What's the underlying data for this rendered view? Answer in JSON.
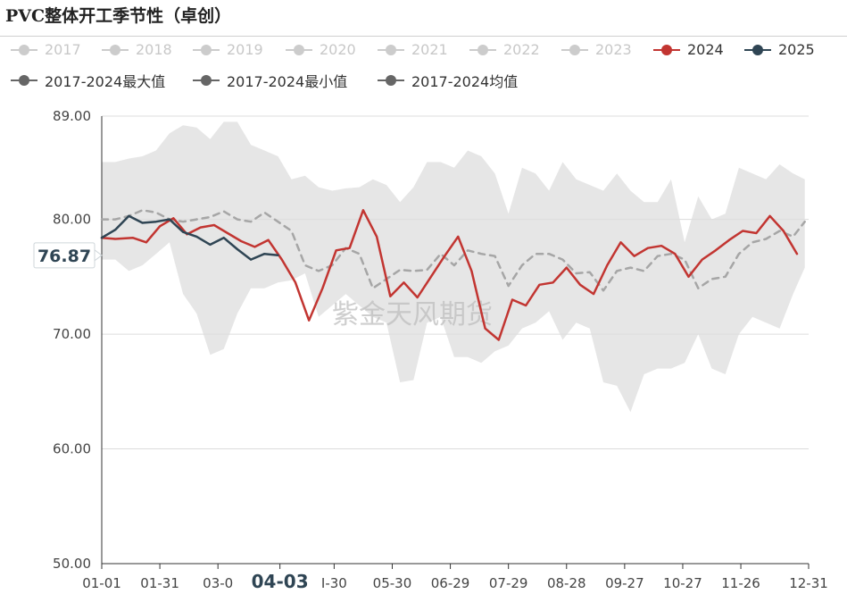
{
  "title": "PVC整体开工季节性（卓创）",
  "legend": [
    {
      "label": "2017",
      "color": "#cccccc",
      "faded": true
    },
    {
      "label": "2018",
      "color": "#cccccc",
      "faded": true
    },
    {
      "label": "2019",
      "color": "#cccccc",
      "faded": true
    },
    {
      "label": "2020",
      "color": "#cccccc",
      "faded": true
    },
    {
      "label": "2021",
      "color": "#cccccc",
      "faded": true
    },
    {
      "label": "2022",
      "color": "#cccccc",
      "faded": true
    },
    {
      "label": "2023",
      "color": "#cccccc",
      "faded": true
    },
    {
      "label": "2024",
      "color": "#c23531",
      "faded": false
    },
    {
      "label": "2025",
      "color": "#2f4554",
      "faded": false
    },
    {
      "label": "2017-2024最大值",
      "color": "#666666",
      "faded": false
    },
    {
      "label": "2017-2024最小值",
      "color": "#666666",
      "faded": false
    },
    {
      "label": "2017-2024均值",
      "color": "#666666",
      "faded": false
    }
  ],
  "watermark": "紫金天风期货",
  "chart_data": {
    "type": "line",
    "y_axis": {
      "min": 50,
      "max": 89,
      "ticks": [
        "50.00",
        "60.00",
        "70.00",
        "80.00",
        "89.00"
      ]
    },
    "x_ticks": [
      "01-01",
      "01-31",
      "03-0",
      "04-03",
      "I-30",
      "05-30",
      "06-29",
      "07-29",
      "08-28",
      "09-27",
      "10-27",
      "11-26",
      "12-31"
    ],
    "x_tick_days": [
      0,
      30,
      60,
      92,
      120,
      150,
      180,
      210,
      240,
      270,
      300,
      330,
      365
    ],
    "highlight_tick": "04-03",
    "pointer_label": "76.87",
    "pointer_value": 76.87,
    "band": {
      "name": "2017-2024最大值/最小值",
      "color": "#e6e6e6",
      "days": [
        0,
        7,
        14,
        21,
        28,
        35,
        42,
        49,
        56,
        63,
        70,
        77,
        84,
        91,
        98,
        105,
        112,
        119,
        126,
        133,
        140,
        147,
        154,
        161,
        168,
        175,
        182,
        189,
        196,
        203,
        210,
        217,
        224,
        231,
        238,
        245,
        252,
        259,
        266,
        273,
        280,
        287,
        294,
        301,
        308,
        315,
        322,
        329,
        336,
        343,
        350,
        357,
        363
      ],
      "max": [
        85,
        85,
        85.3,
        85.5,
        86,
        87.5,
        88.2,
        88,
        87,
        88.5,
        88.5,
        86.5,
        86,
        85.5,
        83.5,
        83.8,
        82.8,
        82.5,
        82.7,
        82.8,
        83.5,
        83,
        81.5,
        82.8,
        85,
        85,
        84.5,
        86,
        85.5,
        84,
        80.5,
        84.5,
        84,
        82.5,
        85,
        83.5,
        83,
        82.5,
        84,
        82.5,
        81.5,
        81.5,
        83.5,
        78,
        82,
        80,
        80.5,
        84.5,
        84,
        83.5,
        84.8,
        84,
        83.5
      ],
      "min": [
        76.5,
        76.5,
        75.5,
        76,
        77,
        78,
        73.5,
        71.8,
        68.2,
        68.7,
        71.8,
        74,
        74,
        74.5,
        74.7,
        75.3,
        71.5,
        72.5,
        73.5,
        72.5,
        71.5,
        71,
        65.8,
        66,
        71,
        71.5,
        68,
        68,
        67.5,
        68.5,
        69,
        70.5,
        71,
        72,
        69.5,
        71,
        70.5,
        65.8,
        65.5,
        63.2,
        66.5,
        67,
        67,
        67.5,
        70,
        67,
        66.5,
        70,
        71.5,
        71,
        70.5,
        73.5,
        75.8
      ]
    },
    "series": [
      {
        "name": "2017-2024均值",
        "color": "#a6a6a6",
        "dashed": true,
        "days": [
          0,
          7,
          14,
          21,
          28,
          35,
          42,
          49,
          56,
          63,
          70,
          77,
          84,
          91,
          98,
          105,
          112,
          119,
          126,
          133,
          140,
          147,
          154,
          161,
          168,
          175,
          182,
          189,
          196,
          203,
          210,
          217,
          224,
          231,
          238,
          245,
          252,
          259,
          266,
          273,
          280,
          287,
          294,
          301,
          308,
          315,
          322,
          329,
          336,
          343,
          350,
          357,
          363
        ],
        "values": [
          80,
          80,
          80.3,
          80.8,
          80.6,
          80,
          79.8,
          80,
          80.2,
          80.7,
          80,
          79.8,
          80.6,
          79.8,
          79,
          76,
          75.5,
          76,
          77.5,
          77,
          74,
          74.8,
          75.6,
          75.5,
          75.6,
          77,
          76,
          77.3,
          77,
          76.8,
          74.2,
          76,
          77,
          77,
          76.5,
          75.3,
          75.4,
          73.8,
          75.5,
          75.8,
          75.5,
          76.8,
          77,
          76.5,
          74,
          74.8,
          75,
          77,
          78,
          78.3,
          79,
          78.5,
          79.8
        ]
      },
      {
        "name": "2024",
        "color": "#c23531",
        "dashed": false,
        "days": [
          0,
          7,
          16,
          23,
          30,
          37,
          44,
          51,
          58,
          65,
          72,
          79,
          86,
          93,
          100,
          107,
          114,
          121,
          128,
          135,
          142,
          149,
          156,
          163,
          170,
          177,
          184,
          191,
          198,
          205,
          212,
          219,
          226,
          233,
          240,
          247,
          254,
          261,
          268,
          275,
          282,
          289,
          296,
          303,
          310,
          317,
          324,
          331,
          338,
          345,
          352,
          359
        ],
        "values": [
          78.4,
          78.3,
          78.4,
          78,
          79.4,
          80.1,
          78.7,
          79.3,
          79.5,
          78.8,
          78.1,
          77.6,
          78.2,
          76.5,
          74.5,
          71.2,
          74,
          77.3,
          77.5,
          80.8,
          78.5,
          73.3,
          74.5,
          73.2,
          75,
          76.8,
          78.5,
          75.5,
          70.5,
          69.5,
          73,
          72.5,
          74.3,
          74.5,
          75.8,
          74.3,
          73.5,
          76,
          78,
          76.8,
          77.5,
          77.7,
          77,
          75,
          76.5,
          77.3,
          78.2,
          79,
          78.8,
          80.3,
          79,
          77
        ]
      },
      {
        "name": "2025",
        "color": "#2f4554",
        "dashed": false,
        "days": [
          0,
          7,
          14,
          21,
          28,
          35,
          42,
          49,
          56,
          63,
          70,
          77,
          84,
          91
        ],
        "values": [
          78.4,
          79.1,
          80.3,
          79.7,
          79.8,
          80,
          78.9,
          78.5,
          77.8,
          78.4,
          77.4,
          76.5,
          77,
          76.87
        ]
      }
    ]
  }
}
